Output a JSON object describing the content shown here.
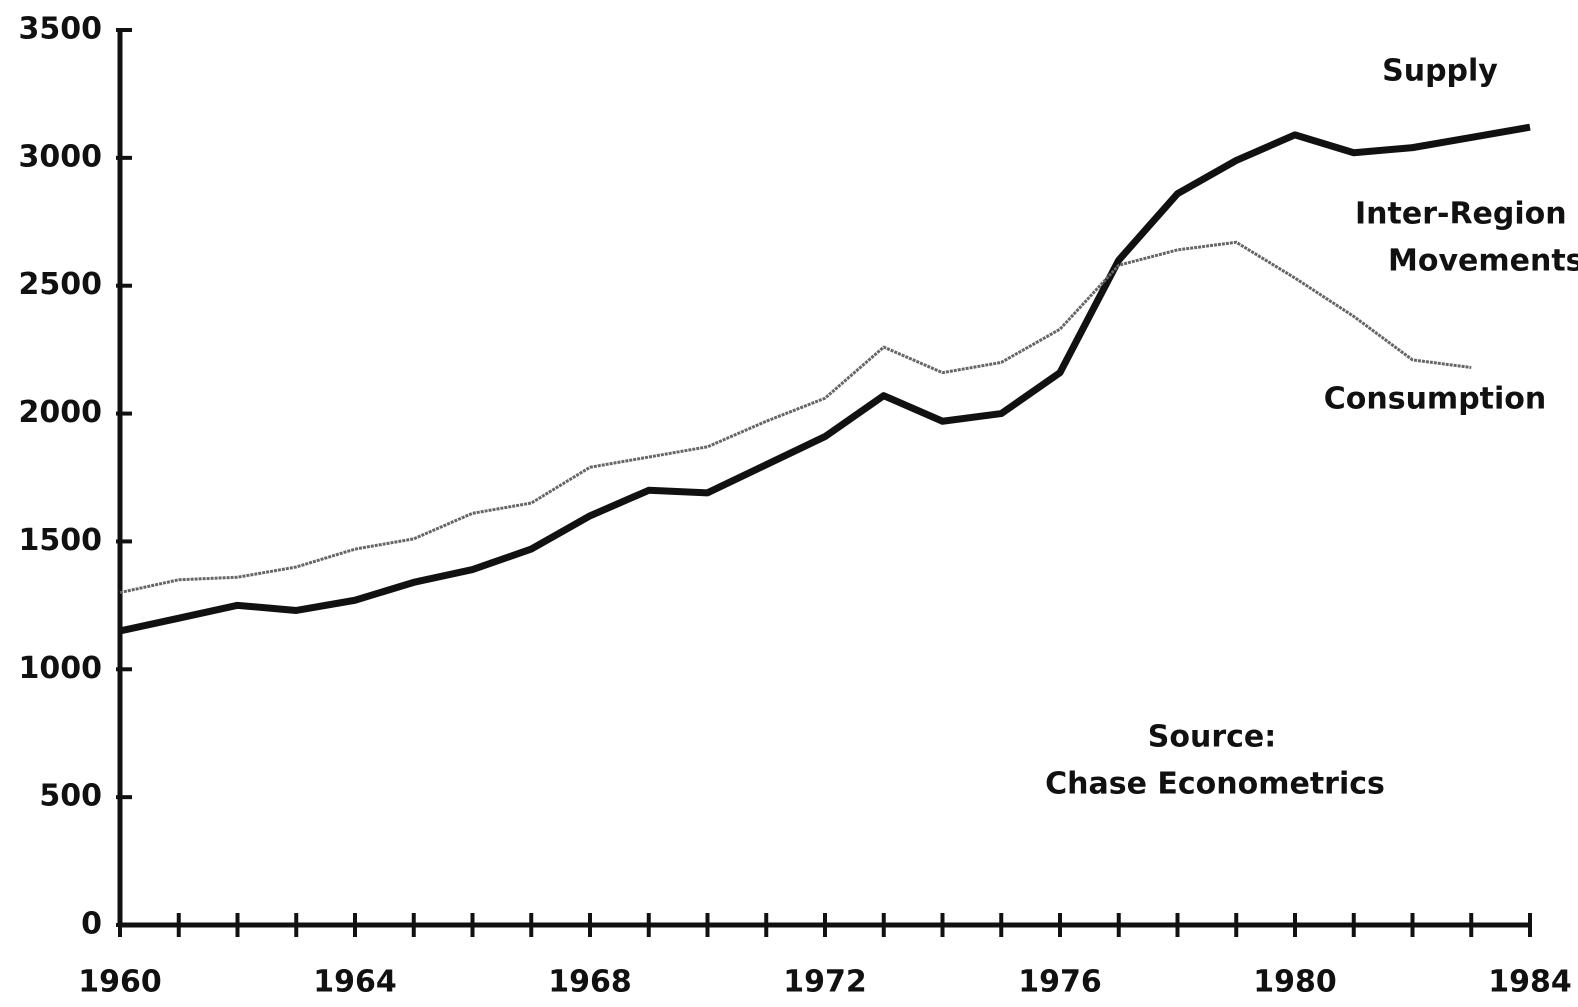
{
  "chart_data": {
    "type": "line",
    "x": [
      1960,
      1961,
      1962,
      1963,
      1964,
      1965,
      1966,
      1967,
      1968,
      1969,
      1970,
      1971,
      1972,
      1973,
      1974,
      1975,
      1976,
      1977,
      1978,
      1979,
      1980,
      1981,
      1982,
      1983,
      1984
    ],
    "series": [
      {
        "name": "Supply",
        "color": "#111111",
        "values": [
          1150,
          1200,
          1250,
          1230,
          1270,
          1340,
          1390,
          1470,
          1600,
          1700,
          1690,
          1800,
          1910,
          2070,
          1970,
          2000,
          2160,
          2600,
          2860,
          2990,
          3090,
          3020,
          3040,
          3080,
          3120
        ]
      },
      {
        "name": "Consumption",
        "color": "#666666",
        "values": [
          1300,
          1350,
          1360,
          1400,
          1470,
          1510,
          1610,
          1650,
          1790,
          1830,
          1870,
          1970,
          2060,
          2260,
          2160,
          2200,
          2330,
          2580,
          2640,
          2670,
          2530,
          2380,
          2210,
          2180,
          null
        ]
      }
    ],
    "annotations": [
      "Inter-Region",
      "Movements",
      "Source:",
      "Chase Econometrics"
    ],
    "xlim": [
      1960,
      1984
    ],
    "xticks": [
      1960,
      1964,
      1968,
      1972,
      1976,
      1980,
      1984
    ],
    "ylim": [
      0,
      3500
    ],
    "yticks": [
      0,
      500,
      1000,
      1500,
      2000,
      2500,
      3000,
      3500
    ]
  }
}
